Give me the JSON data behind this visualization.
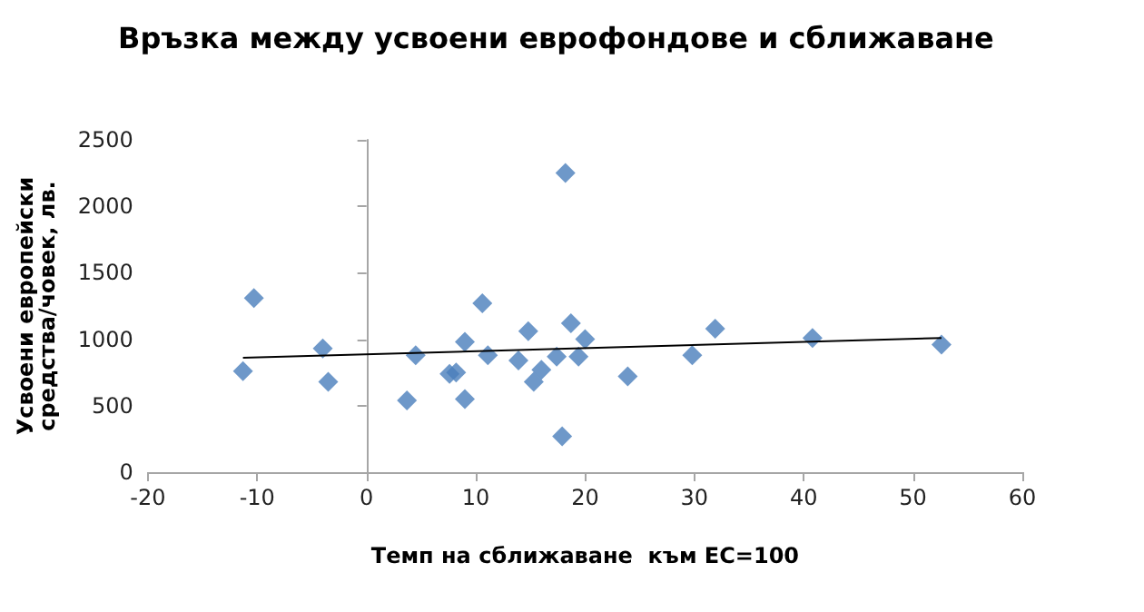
{
  "chart_data": {
    "type": "scatter",
    "title": "Връзка между усвоени еврофондове и сближаване",
    "xlabel": "Темп на сближаване  към ЕС=100",
    "ylabel": "Усвоени европейски средства/човек, лв.",
    "xlim": [
      -20,
      60
    ],
    "xticks": [
      -20,
      -10,
      0,
      10,
      20,
      30,
      40,
      50,
      60
    ],
    "ylim": [
      0,
      2500
    ],
    "yticks": [
      0,
      500,
      1000,
      1500,
      2000,
      2500
    ],
    "marker": "diamond",
    "series": [
      {
        "color": "#4a7ebb",
        "x": [
          -11.3,
          -10.3,
          -4.0,
          -3.5,
          3.7,
          4.5,
          7.6,
          8.2,
          9.0,
          9.0,
          10.6,
          11.1,
          13.9,
          14.8,
          15.3,
          16.0,
          17.4,
          18.2,
          17.9,
          18.7,
          19.4,
          20.0,
          23.9,
          29.8,
          31.9,
          40.8,
          52.6
        ],
        "values": [
          760,
          1310,
          930,
          680,
          540,
          880,
          740,
          750,
          550,
          980,
          1270,
          880,
          840,
          1060,
          680,
          770,
          870,
          2250,
          270,
          1120,
          870,
          1000,
          720,
          880,
          1080,
          1010,
          960
        ]
      },
      {
        "type": "line",
        "color": "#000000",
        "x": [
          -11.3,
          52.6
        ],
        "values": [
          860,
          1010
        ],
        "marker": "none"
      }
    ]
  }
}
